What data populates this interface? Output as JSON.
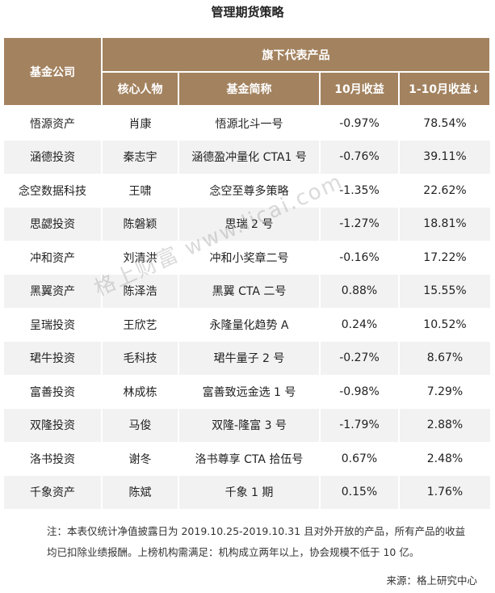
{
  "header": {
    "title": "管理期货策略"
  },
  "table": {
    "company_header": "基金公司",
    "group_header": "旗下代表产品",
    "columns": [
      "核心人物",
      "基金简称",
      "10月收益",
      "1-10月收益↓"
    ],
    "rows": [
      [
        "悟源资产",
        "肖康",
        "悟源北斗一号",
        "-0.97%",
        "78.54%"
      ],
      [
        "涵德投资",
        "秦志宇",
        "涵德盈冲量化 CTA1 号",
        "-0.76%",
        "39.11%"
      ],
      [
        "念空数据科技",
        "王啸",
        "念空至尊多策略",
        "-1.35%",
        "22.62%"
      ],
      [
        "思勰投资",
        "陈磐颖",
        "思瑞 2 号",
        "-1.27%",
        "18.81%"
      ],
      [
        "冲和资产",
        "刘清洪",
        "冲和小奖章二号",
        "-0.16%",
        "17.22%"
      ],
      [
        "黑翼资产",
        "陈泽浩",
        "黑翼 CTA 二号",
        "0.88%",
        "15.55%"
      ],
      [
        "呈瑞投资",
        "王欣艺",
        "永隆量化趋势 A",
        "0.24%",
        "10.52%"
      ],
      [
        "珺牛投资",
        "毛科技",
        "珺牛量子 2 号",
        "-0.27%",
        "8.67%"
      ],
      [
        "富善投资",
        "林成栋",
        "富善致远金选 1 号",
        "-0.98%",
        "7.29%"
      ],
      [
        "双隆投资",
        "马俊",
        "双隆-隆富 3 号",
        "-1.79%",
        "2.88%"
      ],
      [
        "洛书投资",
        "谢冬",
        "洛书尊享 CTA 拾伍号",
        "0.67%",
        "2.48%"
      ],
      [
        "千象资产",
        "陈斌",
        "千象 1 期",
        "0.15%",
        "1.76%"
      ]
    ]
  },
  "watermark": "格上财富 www.licai.com",
  "note": "注：本表仅统计净值披露日为 2019.10.25-2019.10.31 且对外开放的产品，所有产品的收益均已扣除业绩报酬。上榜机构需满足：机构成立两年以上，协会规模不低于 10 亿。",
  "source": "来源：格上研究中心"
}
